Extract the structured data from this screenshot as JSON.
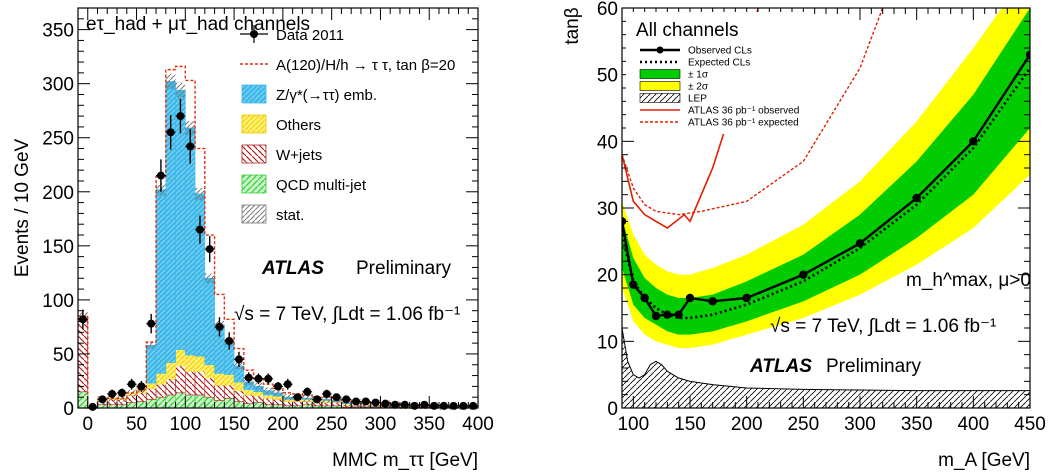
{
  "chart_data": [
    {
      "type": "bar",
      "xlabel": "MMC m_ττ [GeV]",
      "ylabel": "Events / 10 GeV",
      "xlim": [
        -10,
        400
      ],
      "ylim": [
        0,
        370
      ],
      "x_ticks": [
        0,
        50,
        100,
        150,
        200,
        250,
        300,
        350,
        400
      ],
      "y_ticks": [
        0,
        50,
        100,
        150,
        200,
        250,
        300,
        350
      ],
      "channel_label": "eτ_had + μτ_had channels",
      "legend_position": "top-right",
      "atlas_label": "ATLAS",
      "atlas_status": "Preliminary",
      "lumi_label": "√s = 7 TeV, ∫Ldt = 1.06 fb⁻¹",
      "bin_edges": [
        -10,
        0,
        10,
        20,
        30,
        40,
        50,
        60,
        70,
        80,
        90,
        100,
        110,
        120,
        130,
        140,
        150,
        160,
        170,
        180,
        190,
        200,
        210,
        220,
        230,
        240,
        250,
        260,
        270,
        280,
        290,
        300,
        310,
        320,
        330,
        340,
        350,
        360,
        370,
        380,
        390,
        400
      ],
      "series": [
        {
          "name": "QCD multi-jet",
          "color": "#55dd55",
          "style": "hatch",
          "values": [
            15,
            0,
            3,
            3,
            3,
            5,
            6,
            8,
            10,
            12,
            14,
            12,
            12,
            10,
            7,
            9,
            6,
            4,
            5,
            3,
            3,
            2,
            2,
            3,
            2,
            2,
            2,
            1,
            1,
            1,
            1,
            1,
            1,
            0,
            0,
            1,
            1,
            0,
            0,
            0,
            0
          ]
        },
        {
          "name": "W+jets",
          "color": "#b22222",
          "style": "hatch",
          "values": [
            70,
            0,
            4,
            5,
            5,
            7,
            8,
            10,
            12,
            15,
            25,
            22,
            22,
            18,
            14,
            12,
            10,
            8,
            6,
            6,
            5,
            4,
            4,
            3,
            3,
            3,
            3,
            2,
            2,
            2,
            2,
            2,
            1,
            1,
            1,
            1,
            1,
            1,
            1,
            1,
            1
          ]
        },
        {
          "name": "Others",
          "color": "#ffe94d",
          "style": "hatch",
          "values": [
            0,
            0,
            1,
            1,
            1,
            2,
            3,
            5,
            10,
            15,
            15,
            15,
            14,
            12,
            11,
            10,
            8,
            5,
            4,
            3,
            3,
            2,
            2,
            2,
            2,
            2,
            1,
            1,
            1,
            1,
            1,
            1,
            1,
            1,
            1,
            0,
            0,
            0,
            0,
            0,
            0
          ]
        },
        {
          "name": "Z/γ*(→ττ) emb.",
          "color": "#3eb8e8",
          "style": "hatch",
          "values": [
            0,
            0,
            0,
            0,
            0,
            0,
            0,
            35,
            170,
            260,
            240,
            210,
            150,
            80,
            45,
            30,
            15,
            7,
            5,
            4,
            3,
            2,
            2,
            1,
            1,
            1,
            1,
            1,
            1,
            0,
            0,
            0,
            0,
            0,
            0,
            0,
            0,
            0,
            0,
            0,
            0
          ]
        }
      ],
      "signal": {
        "name": "A(120)/H/h → τ τ, tan β=20",
        "color": "#e03010",
        "style": "dashed",
        "values": [
          85,
          0,
          8,
          9,
          9,
          14,
          17,
          61,
          214,
          313,
          316,
          303,
          240,
          160,
          105,
          82,
          55,
          35,
          27,
          22,
          18,
          14,
          13,
          12,
          10,
          10,
          9,
          7,
          6,
          5,
          5,
          5,
          4,
          3,
          3,
          3,
          3,
          2,
          2,
          2,
          2
        ]
      },
      "data": {
        "name": "Data 2011",
        "x": [
          -5,
          5,
          15,
          25,
          35,
          45,
          55,
          65,
          75,
          85,
          95,
          105,
          115,
          125,
          135,
          145,
          155,
          165,
          175,
          185,
          195,
          205,
          215,
          225,
          235,
          245,
          255,
          265,
          275,
          285,
          295,
          305,
          315,
          325,
          335,
          345,
          355,
          365,
          375,
          385,
          395
        ],
        "values": [
          82,
          1,
          8,
          13,
          14,
          22,
          20,
          78,
          215,
          255,
          270,
          242,
          165,
          147,
          75,
          62,
          45,
          28,
          27,
          27,
          20,
          22,
          10,
          15,
          8,
          13,
          10,
          8,
          6,
          6,
          5,
          4,
          3,
          3,
          2,
          3,
          2,
          2,
          2,
          2,
          2
        ],
        "errors": [
          9,
          1,
          3,
          4,
          4,
          5,
          5,
          9,
          15,
          16,
          16,
          16,
          13,
          12,
          9,
          8,
          7,
          5,
          5,
          5,
          4,
          5,
          3,
          4,
          3,
          4,
          3,
          3,
          2,
          2,
          2,
          2,
          2,
          2,
          1,
          2,
          1,
          1,
          1,
          1,
          1
        ]
      },
      "legend_entries": [
        "Data 2011",
        "A(120)/H/h → τ τ, tan β=20",
        "Z/γ*(→ττ) emb.",
        "Others",
        "W+jets",
        "QCD multi-jet",
        "stat."
      ]
    },
    {
      "type": "line",
      "xlabel": "m_A [GeV]",
      "ylabel": "tanβ",
      "xlim": [
        90,
        450
      ],
      "ylim": [
        0,
        60
      ],
      "x_ticks": [
        100,
        150,
        200,
        250,
        300,
        350,
        400,
        450
      ],
      "y_ticks": [
        0,
        10,
        20,
        30,
        40,
        50,
        60
      ],
      "legend_title": "All channels",
      "legend_position": "top-left",
      "scenario_label": "m_h^max, μ>0",
      "atlas_label": "ATLAS",
      "atlas_status": "Preliminary",
      "lumi_label": "√s = 7 TeV, ∫Ldt = 1.06 fb⁻¹",
      "series": [
        {
          "name": "Observed CLs",
          "color": "#000000",
          "style": "solid-markers",
          "x": [
            90,
            100,
            110,
            120,
            130,
            140,
            150,
            170,
            200,
            250,
            300,
            350,
            400,
            450
          ],
          "y": [
            28,
            18.5,
            16.5,
            13.8,
            14,
            14,
            16.5,
            16,
            16.5,
            20,
            24.7,
            31.5,
            40,
            53
          ]
        },
        {
          "name": "Expected CLs",
          "color": "#000000",
          "style": "dotted",
          "x": [
            90,
            100,
            110,
            120,
            130,
            140,
            150,
            170,
            200,
            250,
            300,
            350,
            400,
            450
          ],
          "y": [
            26,
            19,
            16.5,
            15,
            14,
            13.5,
            13.5,
            14,
            15.5,
            19,
            24,
            30.5,
            39,
            51
          ]
        },
        {
          "name": "± 1σ",
          "color": "#00cc00",
          "style": "band",
          "x": [
            90,
            100,
            110,
            120,
            130,
            140,
            150,
            170,
            200,
            250,
            300,
            350,
            400,
            450
          ],
          "low": [
            21,
            15.5,
            13.5,
            12.5,
            11.5,
            11,
            11,
            11.5,
            13,
            16,
            20,
            25.5,
            32,
            42
          ],
          "high": [
            28.5,
            22.5,
            19.5,
            18,
            17,
            16.5,
            16.5,
            17,
            19,
            23,
            29,
            37,
            47,
            60
          ]
        },
        {
          "name": "± 2σ",
          "color": "#ffff00",
          "style": "band",
          "x": [
            90,
            100,
            110,
            120,
            130,
            140,
            150,
            170,
            200,
            250,
            300,
            350,
            400,
            450
          ],
          "low": [
            18,
            13,
            11,
            10,
            9.5,
            9,
            9,
            9.5,
            11,
            13.5,
            17,
            21.5,
            27,
            35
          ],
          "high": [
            31,
            26,
            23,
            21.5,
            20.5,
            20,
            20,
            21,
            23,
            27.5,
            34,
            43,
            54,
            66
          ]
        },
        {
          "name": "LEP",
          "color": "#000000",
          "style": "hatch",
          "x": [
            90,
            92,
            95,
            100,
            105,
            110,
            115,
            120,
            125,
            130,
            140,
            150,
            170,
            200,
            250,
            300,
            350,
            400,
            450
          ],
          "y": [
            12,
            10,
            7,
            5,
            4.5,
            5,
            6.5,
            7,
            6.5,
            5.5,
            4.5,
            4,
            3.5,
            3,
            2.8,
            2.7,
            2.6,
            2.6,
            2.6
          ]
        },
        {
          "name": "ATLAS 36 pb⁻¹ observed",
          "color": "#e02000",
          "style": "solid",
          "x": [
            90,
            100,
            110,
            130,
            145,
            150,
            170,
            200,
            210
          ],
          "y": [
            38,
            31,
            29,
            27,
            29,
            28,
            36,
            52,
            60
          ]
        },
        {
          "name": "ATLAS 36 pb⁻¹ expected",
          "color": "#e02000",
          "style": "dashed",
          "x": [
            90,
            100,
            110,
            120,
            140,
            160,
            200,
            250,
            300,
            320,
            330
          ],
          "y": [
            38,
            33,
            30.5,
            29.5,
            29,
            29.5,
            31,
            37,
            51,
            60,
            64
          ]
        }
      ],
      "legend_entries": [
        "Observed CLs",
        "Expected CLs",
        "± 1σ",
        "± 2σ",
        "LEP",
        "ATLAS 36 pb⁻¹ observed",
        "ATLAS 36 pb⁻¹ expected"
      ]
    }
  ]
}
